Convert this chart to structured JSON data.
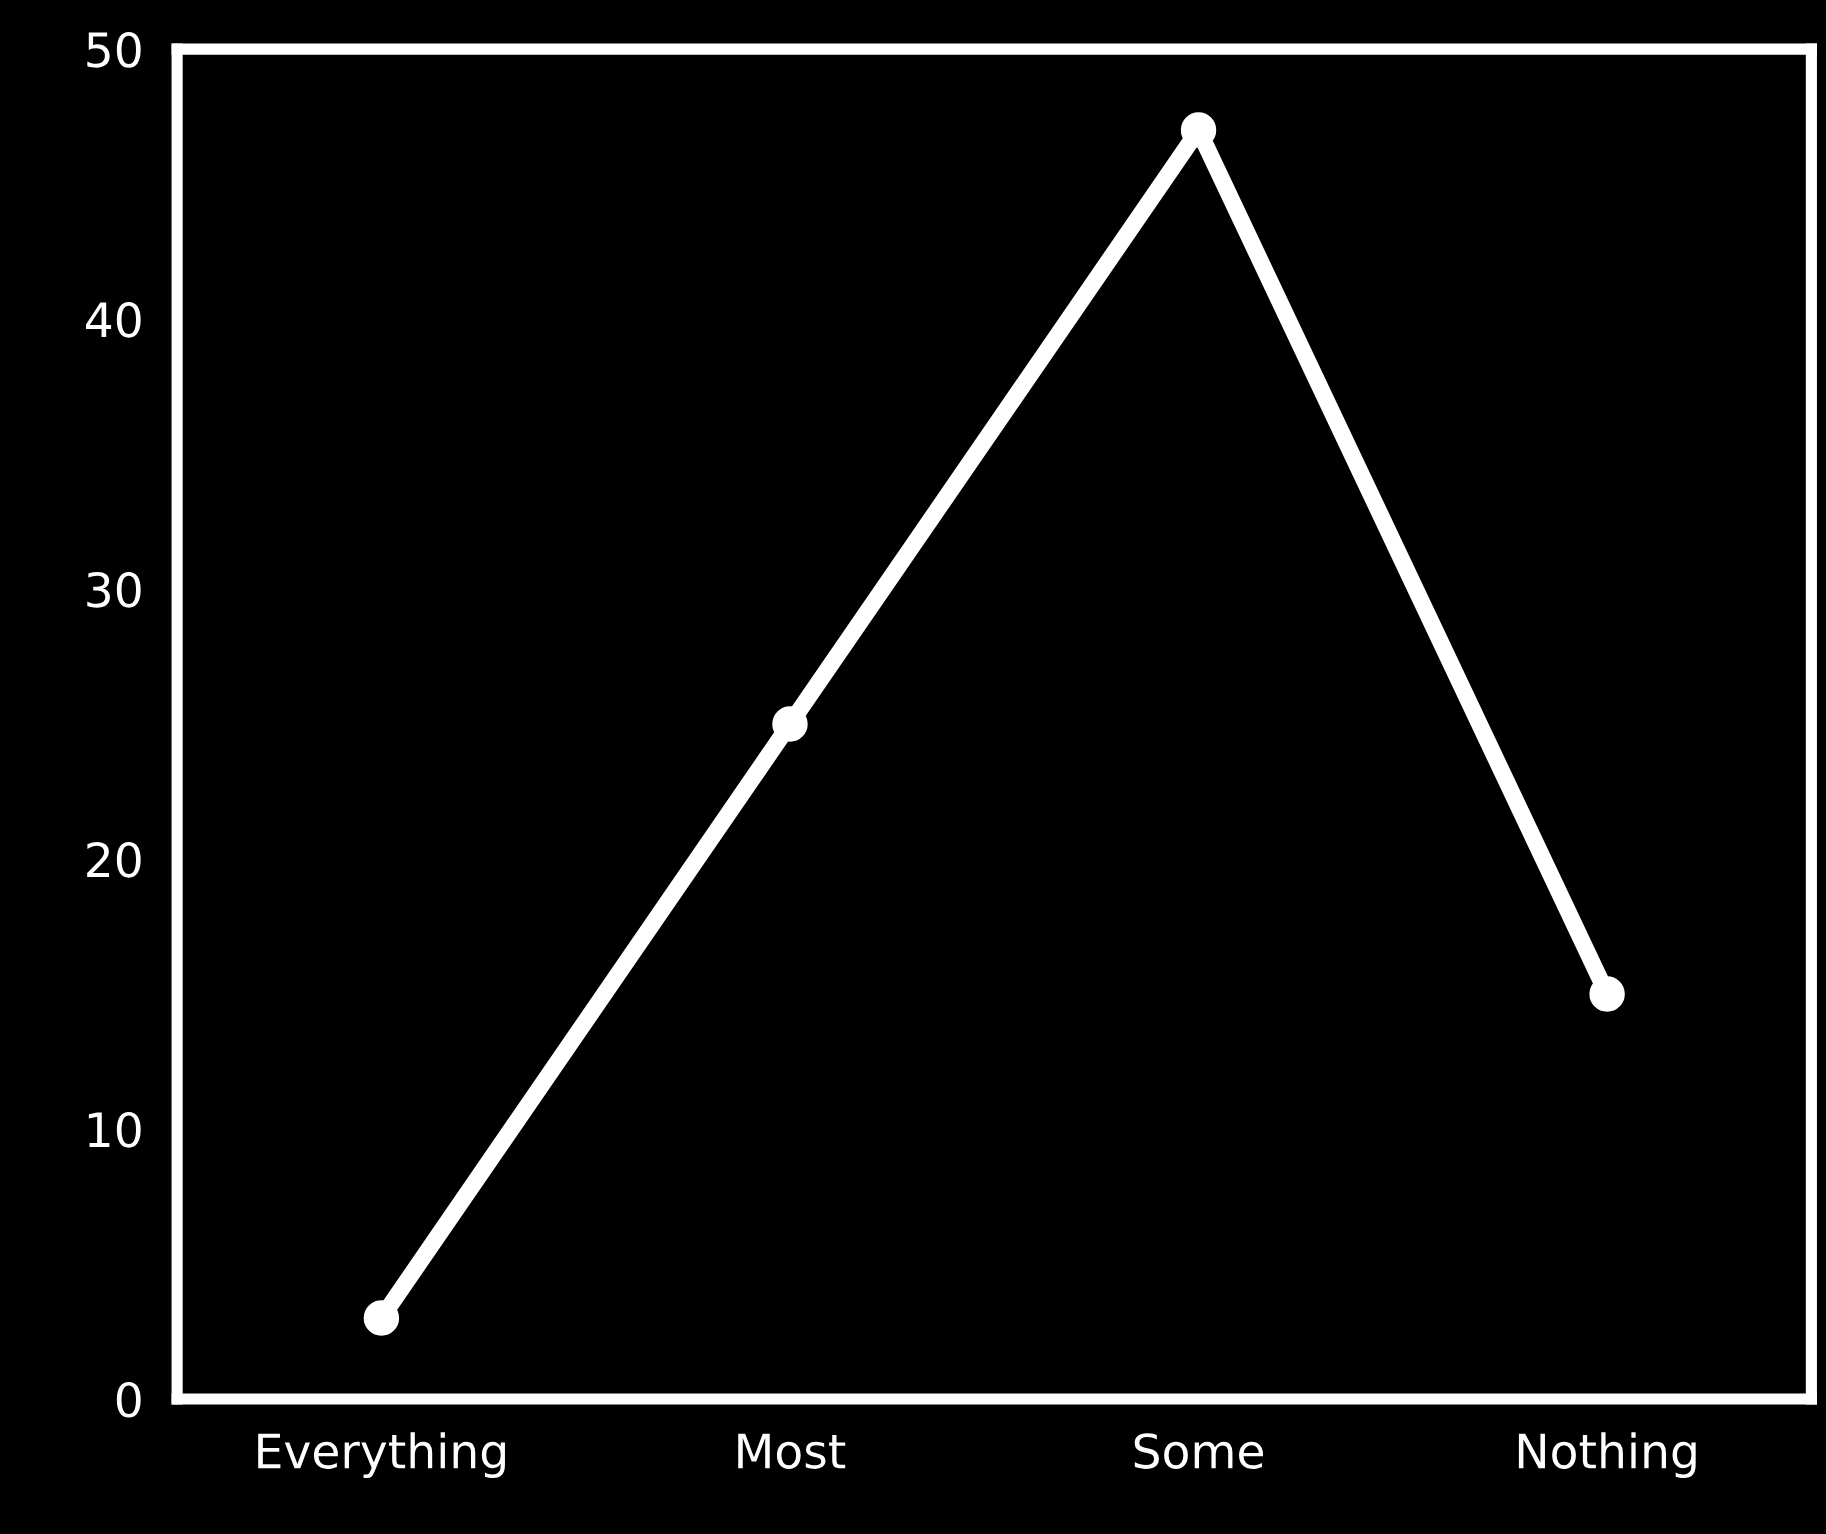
{
  "chart_data": {
    "type": "line",
    "categories": [
      "Everything",
      "Most",
      "Some",
      "Nothing"
    ],
    "series": [
      {
        "color": "#ffffff",
        "values": [
          3,
          25,
          47,
          15
        ]
      }
    ],
    "ylim": [
      0,
      50
    ],
    "yticks": [
      0,
      10,
      20,
      30,
      40,
      50
    ],
    "grid": false,
    "legend": false,
    "marker": "circle",
    "line_style": "solid"
  }
}
